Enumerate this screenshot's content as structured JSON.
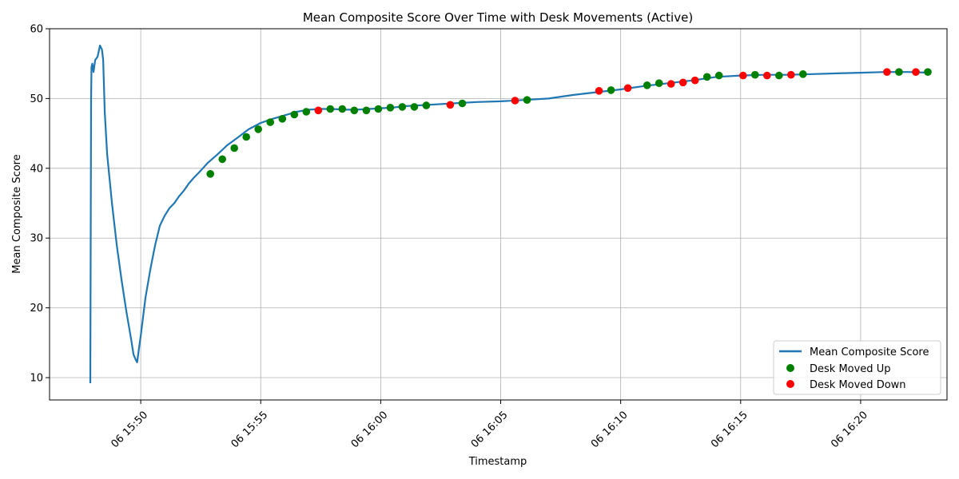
{
  "chart_data": {
    "type": "line",
    "title": "Mean Composite Score Over Time with Desk Movements (Active)",
    "xlabel": "Timestamp",
    "ylabel": "Mean Composite Score",
    "xlim": [
      "06 15:46:12",
      "06 16:23:36"
    ],
    "ylim": [
      6.8,
      60
    ],
    "x_ticks": [
      "06 15:50",
      "06 15:55",
      "06 16:00",
      "06 16:05",
      "06 16:10",
      "06 16:15",
      "06 16:20"
    ],
    "y_ticks": [
      10,
      20,
      30,
      40,
      50,
      60
    ],
    "grid": true,
    "legend_position": "lower-right",
    "colors": {
      "line": "#1f77b4",
      "up": "#008000",
      "down": "#ff0000"
    },
    "series": [
      {
        "name": "Mean Composite Score",
        "kind": "line",
        "points": [
          [
            "06 15:47:54",
            9.2
          ],
          [
            "06 15:47:55",
            30.0
          ],
          [
            "06 15:47:56",
            50.0
          ],
          [
            "06 15:47:57",
            54.5
          ],
          [
            "06 15:47:59",
            55.0
          ],
          [
            "06 15:48:02",
            53.8
          ],
          [
            "06 15:48:06",
            55.5
          ],
          [
            "06 15:48:12",
            56.0
          ],
          [
            "06 15:48:18",
            57.6
          ],
          [
            "06 15:48:23",
            57.0
          ],
          [
            "06 15:48:26",
            55.5
          ],
          [
            "06 15:48:30",
            48.0
          ],
          [
            "06 15:48:36",
            42.0
          ],
          [
            "06 15:48:48",
            35.0
          ],
          [
            "06 15:49:00",
            29.0
          ],
          [
            "06 15:49:12",
            24.0
          ],
          [
            "06 15:49:24",
            19.5
          ],
          [
            "06 15:49:36",
            15.5
          ],
          [
            "06 15:49:42",
            13.3
          ],
          [
            "06 15:49:48",
            12.5
          ],
          [
            "06 15:49:51",
            12.2
          ],
          [
            "06 15:49:54",
            13.5
          ],
          [
            "06 15:50:00",
            16.0
          ],
          [
            "06 15:50:12",
            21.5
          ],
          [
            "06 15:50:24",
            25.5
          ],
          [
            "06 15:50:36",
            29.0
          ],
          [
            "06 15:50:48",
            31.8
          ],
          [
            "06 15:51:00",
            33.2
          ],
          [
            "06 15:51:12",
            34.3
          ],
          [
            "06 15:51:24",
            35.0
          ],
          [
            "06 15:51:36",
            36.0
          ],
          [
            "06 15:51:48",
            36.8
          ],
          [
            "06 15:52:00",
            37.8
          ],
          [
            "06 15:52:12",
            38.6
          ],
          [
            "06 15:52:24",
            39.3
          ],
          [
            "06 15:52:48",
            40.8
          ],
          [
            "06 15:53:12",
            42.0
          ],
          [
            "06 15:53:36",
            43.3
          ],
          [
            "06 15:54:00",
            44.3
          ],
          [
            "06 15:54:30",
            45.6
          ],
          [
            "06 15:55:00",
            46.5
          ],
          [
            "06 15:55:30",
            47.1
          ],
          [
            "06 15:56:00",
            47.6
          ],
          [
            "06 15:56:30",
            48.1
          ],
          [
            "06 15:57:00",
            48.4
          ],
          [
            "06 15:57:30",
            48.5
          ],
          [
            "06 15:58:00",
            48.5
          ],
          [
            "06 15:58:30",
            48.4
          ],
          [
            "06 15:59:00",
            48.4
          ],
          [
            "06 15:59:30",
            48.5
          ],
          [
            "06 16:00:00",
            48.6
          ],
          [
            "06 16:00:30",
            48.7
          ],
          [
            "06 16:01:00",
            48.9
          ],
          [
            "06 16:02:00",
            49.1
          ],
          [
            "06 16:03:00",
            49.3
          ],
          [
            "06 16:04:00",
            49.5
          ],
          [
            "06 16:05:00",
            49.6
          ],
          [
            "06 16:06:00",
            49.8
          ],
          [
            "06 16:07:00",
            50.0
          ],
          [
            "06 16:08:00",
            50.5
          ],
          [
            "06 16:09:00",
            50.9
          ],
          [
            "06 16:10:00",
            51.3
          ],
          [
            "06 16:11:00",
            51.8
          ],
          [
            "06 16:12:00",
            52.2
          ],
          [
            "06 16:13:00",
            52.6
          ],
          [
            "06 16:14:00",
            53.1
          ],
          [
            "06 16:15:00",
            53.3
          ],
          [
            "06 16:16:00",
            53.4
          ],
          [
            "06 16:17:00",
            53.4
          ],
          [
            "06 16:18:00",
            53.5
          ],
          [
            "06 16:19:00",
            53.6
          ],
          [
            "06 16:20:00",
            53.7
          ],
          [
            "06 16:21:00",
            53.8
          ],
          [
            "06 16:22:00",
            53.8
          ],
          [
            "06 16:22:55",
            53.7
          ]
        ]
      },
      {
        "name": "Desk Moved Up",
        "kind": "scatter",
        "points": [
          [
            "06 15:52:54",
            39.2
          ],
          [
            "06 15:53:24",
            41.3
          ],
          [
            "06 15:53:54",
            42.9
          ],
          [
            "06 15:54:24",
            44.5
          ],
          [
            "06 15:54:54",
            45.6
          ],
          [
            "06 15:55:24",
            46.6
          ],
          [
            "06 15:55:54",
            47.1
          ],
          [
            "06 15:56:24",
            47.7
          ],
          [
            "06 15:56:54",
            48.1
          ],
          [
            "06 15:57:54",
            48.5
          ],
          [
            "06 15:58:24",
            48.5
          ],
          [
            "06 15:58:54",
            48.3
          ],
          [
            "06 15:59:24",
            48.3
          ],
          [
            "06 15:59:54",
            48.5
          ],
          [
            "06 16:00:24",
            48.7
          ],
          [
            "06 16:00:54",
            48.8
          ],
          [
            "06 16:01:24",
            48.8
          ],
          [
            "06 16:01:54",
            49.0
          ],
          [
            "06 16:03:24",
            49.3
          ],
          [
            "06 16:06:06",
            49.8
          ],
          [
            "06 16:09:36",
            51.2
          ],
          [
            "06 16:11:06",
            51.9
          ],
          [
            "06 16:11:36",
            52.2
          ],
          [
            "06 16:13:36",
            53.1
          ],
          [
            "06 16:14:06",
            53.3
          ],
          [
            "06 16:15:36",
            53.4
          ],
          [
            "06 16:16:36",
            53.3
          ],
          [
            "06 16:17:36",
            53.5
          ],
          [
            "06 16:21:36",
            53.8
          ],
          [
            "06 16:22:48",
            53.8
          ]
        ]
      },
      {
        "name": "Desk Moved Down",
        "kind": "scatter",
        "points": [
          [
            "06 15:57:24",
            48.3
          ],
          [
            "06 16:02:54",
            49.1
          ],
          [
            "06 16:05:36",
            49.7
          ],
          [
            "06 16:09:06",
            51.1
          ],
          [
            "06 16:10:18",
            51.5
          ],
          [
            "06 16:12:06",
            52.1
          ],
          [
            "06 16:12:36",
            52.3
          ],
          [
            "06 16:13:06",
            52.6
          ],
          [
            "06 16:15:06",
            53.3
          ],
          [
            "06 16:16:06",
            53.3
          ],
          [
            "06 16:17:06",
            53.4
          ],
          [
            "06 16:21:06",
            53.8
          ],
          [
            "06 16:22:18",
            53.8
          ]
        ]
      }
    ]
  }
}
